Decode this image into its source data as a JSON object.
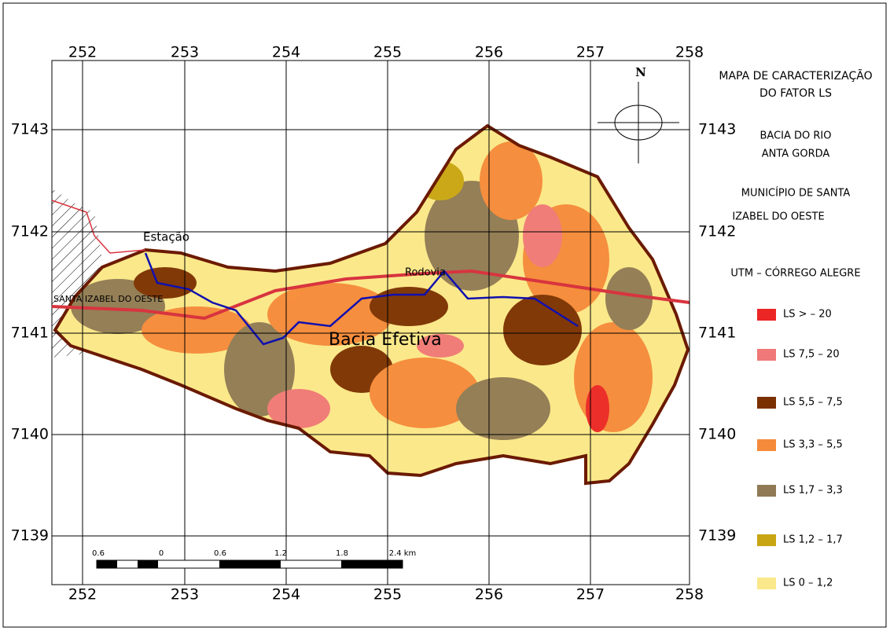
{
  "map": {
    "title": [
      "MAPA DE CARACTERIZAÇÃO",
      "DO FATOR LS"
    ],
    "basin": [
      "BACIA DO RIO",
      "ANTA GORDA"
    ],
    "municipality": [
      "MUNICÍPIO DE SANTA",
      "IZABEL DO OESTE"
    ],
    "datum": "UTM –  CÓRREGO ALEGRE",
    "north": "N",
    "grid": {
      "x_labels": [
        "252",
        "253",
        "254",
        "255",
        "256",
        "257",
        "258"
      ],
      "y_labels": [
        "7143",
        "7142",
        "7141",
        "7140",
        "7139"
      ]
    },
    "place_labels": {
      "station": "Estação",
      "road": "Rodovia",
      "town": "SANTA IZABEL DO OESTE",
      "area": "Bacia Efetiva"
    },
    "scale_labels": [
      "0.6",
      "0",
      "0.6",
      "1.2",
      "1.8",
      "2.4 km"
    ],
    "legend": [
      {
        "label": "LS > – 20",
        "color": "#ec2525"
      },
      {
        "label": "LS 7,5 – 20",
        "color": "#f07878"
      },
      {
        "label": "LS 5,5 – 7,5",
        "color": "#7b3000"
      },
      {
        "label": "LS 3,3 – 5,5",
        "color": "#f58a3a"
      },
      {
        "label": "LS 1,7 – 3,3",
        "color": "#8f7a55"
      },
      {
        "label": "LS 1,2 – 1,7",
        "color": "#c8a512"
      },
      {
        "label": "LS 0 – 1,2",
        "color": "#fbe88a"
      }
    ]
  }
}
